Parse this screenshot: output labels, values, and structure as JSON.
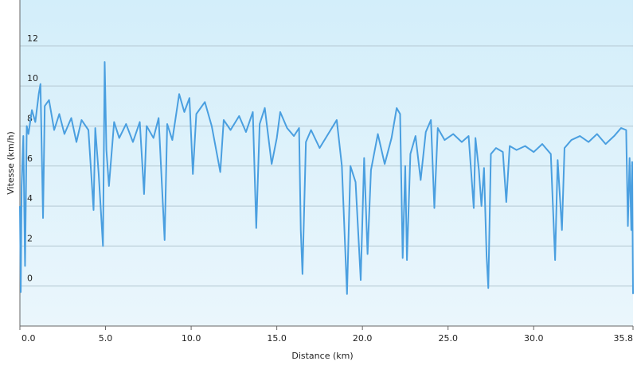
{
  "chart_data": {
    "type": "line",
    "x_label": "Distance  (km)",
    "y_label": "Vitesse (km/h)",
    "xlim": [
      0,
      35.8
    ],
    "ylim": [
      -2,
      14.3
    ],
    "xticks": [
      {
        "value": 0,
        "label": "0.0"
      },
      {
        "value": 5,
        "label": "5.0"
      },
      {
        "value": 10,
        "label": "10.0"
      },
      {
        "value": 15,
        "label": "15.0"
      },
      {
        "value": 20,
        "label": "20.0"
      },
      {
        "value": 25,
        "label": "25.0"
      },
      {
        "value": 30,
        "label": "30.0"
      },
      35.8
    ],
    "yticks": [
      0,
      2,
      4,
      6,
      8,
      10,
      12
    ],
    "grid": true,
    "color": "#4a9fe0",
    "x": [
      0,
      0.05,
      0.1,
      0.2,
      0.3,
      0.4,
      0.5,
      0.7,
      0.9,
      1.1,
      1.2,
      1.35,
      1.45,
      1.7,
      2.0,
      2.3,
      2.6,
      3.0,
      3.3,
      3.6,
      4.0,
      4.3,
      4.4,
      4.6,
      4.85,
      4.95,
      5.05,
      5.2,
      5.5,
      5.8,
      6.2,
      6.6,
      7.0,
      7.25,
      7.4,
      7.8,
      8.1,
      8.45,
      8.6,
      8.9,
      9.3,
      9.6,
      9.9,
      10.1,
      10.3,
      10.8,
      11.2,
      11.7,
      11.9,
      12.3,
      12.8,
      13.2,
      13.6,
      13.8,
      14.0,
      14.3,
      14.7,
      15.0,
      15.2,
      15.6,
      16.0,
      16.3,
      16.4,
      16.5,
      16.7,
      17.0,
      17.5,
      18.0,
      18.5,
      18.8,
      19.1,
      19.3,
      19.6,
      19.9,
      20.1,
      20.3,
      20.5,
      20.9,
      21.3,
      21.7,
      22.0,
      22.2,
      22.35,
      22.5,
      22.6,
      22.8,
      23.1,
      23.4,
      23.7,
      24.0,
      24.2,
      24.4,
      24.8,
      25.3,
      25.8,
      26.2,
      26.5,
      26.6,
      26.8,
      26.95,
      27.1,
      27.25,
      27.35,
      27.5,
      27.8,
      28.2,
      28.4,
      28.6,
      29.0,
      29.5,
      30.0,
      30.5,
      31.0,
      31.25,
      31.4,
      31.65,
      31.8,
      32.2,
      32.7,
      33.2,
      33.7,
      34.2,
      34.7,
      35.1,
      35.4,
      35.5,
      35.6,
      35.7,
      35.75,
      35.8
    ],
    "values": [
      4,
      -0.3,
      5,
      7.5,
      1,
      8,
      7.6,
      8.8,
      8.2,
      9.6,
      10.1,
      3.4,
      9,
      9.3,
      7.8,
      8.6,
      7.6,
      8.4,
      7.2,
      8.3,
      7.8,
      3.8,
      7.9,
      5.6,
      2,
      11.2,
      6.8,
      5,
      8.2,
      7.4,
      8.1,
      7.2,
      8.2,
      4.6,
      8,
      7.4,
      8.4,
      2.3,
      8.1,
      7.3,
      9.6,
      8.7,
      9.4,
      5.6,
      8.6,
      9.2,
      8,
      5.7,
      8.3,
      7.8,
      8.5,
      7.7,
      8.7,
      2.9,
      8.1,
      8.9,
      6.1,
      7.4,
      8.7,
      7.9,
      7.5,
      7.9,
      2.8,
      0.6,
      7.2,
      7.8,
      6.9,
      7.6,
      8.3,
      6,
      -0.4,
      6,
      5.2,
      0.3,
      6.4,
      1.6,
      5.8,
      7.6,
      6.1,
      7.4,
      8.9,
      8.6,
      1.4,
      6,
      1.3,
      6.6,
      7.5,
      5.3,
      7.7,
      8.3,
      3.9,
      7.9,
      7.3,
      7.6,
      7.2,
      7.5,
      3.9,
      7.4,
      5.8,
      4,
      5.9,
      1.5,
      -0.1,
      6.6,
      6.9,
      6.7,
      4.2,
      7,
      6.8,
      7,
      6.7,
      7.1,
      6.6,
      1.3,
      6.3,
      2.8,
      6.9,
      7.3,
      7.5,
      7.2,
      7.6,
      7.1,
      7.5,
      7.9,
      7.8,
      3,
      6.4,
      2.8,
      6.2,
      -0.4
    ]
  }
}
